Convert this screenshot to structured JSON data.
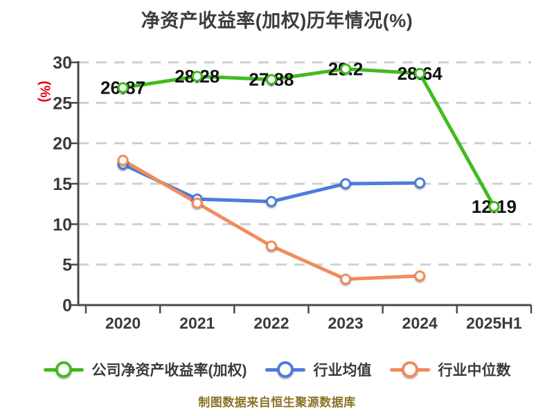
{
  "colors": {
    "background": "#ffffff",
    "title_text": "#3c3c3c",
    "axis": "#4a4a4a",
    "grid": "#cfcfcf",
    "tick_text": "#3a3a3a",
    "data_label": "#111111",
    "y_unit_red": "#e60012",
    "legend_text": "#3a3a3a",
    "source_text": "#8b7226"
  },
  "chart_data": {
    "type": "line",
    "title": "净资产收益率(加权)历年情况(%)",
    "ylabel": "(%)",
    "xlabel": "",
    "ylim": [
      0,
      30
    ],
    "yticks": [
      0,
      5,
      10,
      15,
      20,
      25,
      30
    ],
    "grid": true,
    "grid_style": "dashed",
    "legend_position": "bottom",
    "categories": [
      "2020",
      "2021",
      "2022",
      "2023",
      "2024",
      "2025H1"
    ],
    "series": [
      {
        "id": "company-roe",
        "name": "公司净资产收益率(加权)",
        "color": "#41bb1f",
        "values": [
          26.87,
          28.28,
          27.88,
          29.2,
          28.64,
          12.19
        ],
        "labels": [
          "26.87",
          "28.28",
          "27.88",
          "29.2",
          "28.64",
          "12.19"
        ],
        "show_labels": true
      },
      {
        "id": "industry-avg",
        "name": "行业均值",
        "color": "#4d7cdb",
        "values": [
          17.4,
          13.1,
          12.8,
          15.0,
          15.1
        ],
        "labels": [],
        "show_labels": false
      },
      {
        "id": "industry-median",
        "name": "行业中位数",
        "color": "#f08c5c",
        "values": [
          17.9,
          12.6,
          7.3,
          3.2,
          3.6
        ],
        "labels": [],
        "show_labels": false
      }
    ],
    "source_note": "制图数据来自恒生聚源数据库"
  }
}
